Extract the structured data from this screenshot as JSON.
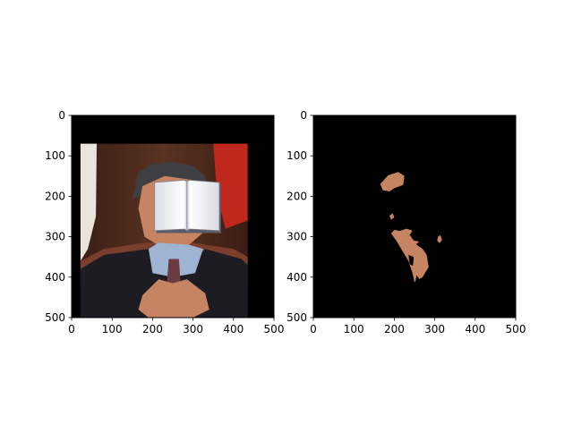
{
  "chart_data": [
    {
      "type": "image",
      "subject": "photo of a man in a dark suit with clasped hands; face covered by an open-book graphic",
      "x_ticks": [
        0,
        100,
        200,
        300,
        400,
        500
      ],
      "y_ticks": [
        0,
        100,
        200,
        300,
        400,
        500
      ],
      "xlim": [
        0,
        500
      ],
      "ylim": [
        500,
        0
      ],
      "photo_extent": {
        "x": [
          22,
          435
        ],
        "y": [
          70,
          500
        ]
      },
      "occluder_extent": {
        "x": [
          205,
          365
        ],
        "y": [
          160,
          285
        ]
      }
    },
    {
      "type": "image",
      "subject": "segmentation mask: only skin-colored regions visible on black background",
      "x_ticks": [
        0,
        100,
        200,
        300,
        400,
        500
      ],
      "y_ticks": [
        0,
        100,
        200,
        300,
        400,
        500
      ],
      "xlim": [
        0,
        500
      ],
      "ylim": [
        500,
        0
      ]
    }
  ],
  "colors": {
    "background": "#000000",
    "skin": "#c68463",
    "suit": "#1c1c22",
    "shirt": "#9fb4d2",
    "tie": "#6b3a42",
    "chair": "#7a3e2c",
    "flag_red": "#c0281e",
    "flag_white": "#e9e4dc",
    "book": "#f4f5f8"
  }
}
